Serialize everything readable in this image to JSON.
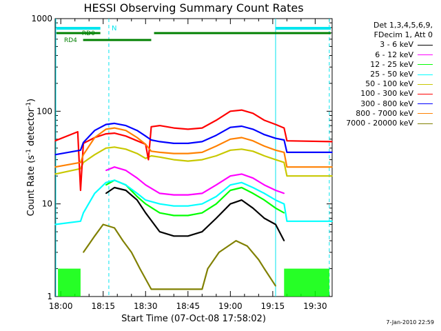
{
  "page": {
    "title": "HESSI Observing Summary Count Rates",
    "timestamp": "7-Jan-2010 22:59"
  },
  "legend": {
    "header": [
      "Det 1,3,4,5,6,9,",
      "FDecim 1, Att 0"
    ]
  },
  "chart_data": {
    "type": "line",
    "title": "HESSI Observing Summary Count Rates",
    "xlabel": "Start Time (07-Oct-08 17:58:02)",
    "ylabel_prefix": "Count Rate (s",
    "ylabel_mid": " detector",
    "ylabel_suffix": ")",
    "ylabel_exp": "-1",
    "ylim": [
      1,
      1000
    ],
    "yscale": "log",
    "xlim": [
      "17:58",
      "19:36"
    ],
    "xticks": [
      "18:00",
      "18:15",
      "18:30",
      "18:45",
      "19:00",
      "19:15",
      "19:30"
    ],
    "yticks": [
      "1",
      "10",
      "100",
      "1000"
    ],
    "series": [
      {
        "name": "3 - 6 keV",
        "color": "#000000",
        "x": [
          "18:16",
          "18:19",
          "18:23",
          "18:27",
          "18:30",
          "18:35",
          "18:40",
          "18:45",
          "18:50",
          "18:55",
          "19:00",
          "19:04",
          "19:08",
          "19:12",
          "19:16",
          "19:19"
        ],
        "values": [
          13,
          15,
          14,
          11,
          8,
          5,
          4.5,
          4.5,
          5,
          7,
          10,
          11,
          9,
          7,
          6,
          4
        ]
      },
      {
        "name": "6 - 12 keV",
        "color": "#ff00ff",
        "x": [
          "18:16",
          "18:19",
          "18:23",
          "18:27",
          "18:30",
          "18:35",
          "18:40",
          "18:45",
          "18:50",
          "18:55",
          "19:00",
          "19:04",
          "19:08",
          "19:12",
          "19:16",
          "19:19"
        ],
        "values": [
          23,
          25,
          23,
          19,
          16,
          13,
          12.5,
          12.5,
          13,
          16,
          20,
          21,
          19,
          16,
          14,
          13
        ]
      },
      {
        "name": "12 - 25 keV",
        "color": "#00ff00",
        "x": [
          "18:16",
          "18:19",
          "18:23",
          "18:27",
          "18:30",
          "18:35",
          "18:40",
          "18:45",
          "18:50",
          "18:55",
          "19:00",
          "19:04",
          "19:08",
          "19:12",
          "19:16",
          "19:19"
        ],
        "values": [
          16,
          18,
          16,
          12,
          10,
          8,
          7.5,
          7.5,
          8,
          10,
          14,
          15,
          13,
          11,
          9,
          8
        ]
      },
      {
        "name": "25 - 50 keV",
        "color": "#00ffff",
        "x": [
          "17:58",
          "18:07",
          "18:08",
          "18:12",
          "18:16",
          "18:19",
          "18:23",
          "18:27",
          "18:30",
          "18:35",
          "18:40",
          "18:45",
          "18:50",
          "18:55",
          "19:00",
          "19:04",
          "19:08",
          "19:12",
          "19:16",
          "19:19",
          "19:20",
          "19:36"
        ],
        "values": [
          6,
          6.5,
          8,
          13,
          17,
          18,
          16,
          13,
          11,
          10,
          9.5,
          9.5,
          10,
          12,
          16,
          17,
          15,
          13,
          11,
          10,
          6.5,
          6.5
        ]
      },
      {
        "name": "50 - 100 keV",
        "color": "#c8c800",
        "x": [
          "17:58",
          "18:07",
          "18:08",
          "18:12",
          "18:16",
          "18:19",
          "18:23",
          "18:27",
          "18:30",
          "18:32",
          "18:35",
          "18:40",
          "18:45",
          "18:50",
          "18:55",
          "19:00",
          "19:04",
          "19:08",
          "19:12",
          "19:16",
          "19:19",
          "19:20",
          "19:36"
        ],
        "values": [
          21,
          24,
          28,
          34,
          40,
          41,
          39,
          35,
          31,
          33,
          32,
          30,
          29,
          30,
          33,
          38,
          39,
          37,
          33,
          30,
          28,
          20,
          20
        ]
      },
      {
        "name": "100 - 300 keV",
        "color": "#ff0000",
        "x": [
          "17:58",
          "18:06",
          "18:07",
          "18:08",
          "18:12",
          "18:16",
          "18:19",
          "18:23",
          "18:27",
          "18:30",
          "18:31",
          "18:32",
          "18:35",
          "18:40",
          "18:45",
          "18:50",
          "18:55",
          "19:00",
          "19:04",
          "19:08",
          "19:12",
          "19:16",
          "19:19",
          "19:20",
          "19:36"
        ],
        "values": [
          48,
          60,
          14,
          45,
          52,
          57,
          58,
          54,
          48,
          44,
          30,
          68,
          70,
          66,
          64,
          66,
          80,
          100,
          103,
          95,
          80,
          72,
          66,
          48,
          47
        ]
      },
      {
        "name": "300 - 800 keV",
        "color": "#0000ff",
        "x": [
          "17:58",
          "18:07",
          "18:08",
          "18:12",
          "18:16",
          "18:19",
          "18:23",
          "18:27",
          "18:30",
          "18:32",
          "18:35",
          "18:40",
          "18:45",
          "18:50",
          "18:55",
          "19:00",
          "19:04",
          "19:08",
          "19:12",
          "19:16",
          "19:19",
          "19:20",
          "19:36"
        ],
        "values": [
          34,
          38,
          46,
          62,
          72,
          74,
          70,
          62,
          54,
          49,
          47,
          45,
          45,
          47,
          55,
          67,
          69,
          64,
          56,
          51,
          49,
          36,
          36
        ]
      },
      {
        "name": "800 - 7000 keV",
        "color": "#ff8000",
        "x": [
          "17:58",
          "18:07",
          "18:08",
          "18:12",
          "18:16",
          "18:19",
          "18:23",
          "18:27",
          "18:30",
          "18:32",
          "18:35",
          "18:40",
          "18:45",
          "18:50",
          "18:55",
          "19:00",
          "19:04",
          "19:08",
          "19:12",
          "19:16",
          "19:19",
          "19:20",
          "19:36"
        ],
        "values": [
          25,
          28,
          34,
          52,
          64,
          66,
          62,
          52,
          44,
          37,
          36,
          35,
          35,
          36,
          42,
          50,
          52,
          48,
          42,
          38,
          36,
          25,
          25
        ]
      },
      {
        "name": "7000 - 20000 keV",
        "color": "#808000",
        "x": [
          "18:08",
          "18:12",
          "18:15",
          "18:19",
          "18:22",
          "18:25",
          "18:28",
          "18:32",
          "18:50",
          "18:52",
          "18:56",
          "19:02",
          "19:06",
          "19:10",
          "19:12",
          "19:16"
        ],
        "values": [
          3,
          4.5,
          6,
          5.5,
          4,
          3,
          2,
          1.2,
          1.2,
          2,
          3,
          4,
          3.5,
          2.5,
          2,
          1.3
        ]
      }
    ],
    "annotations": {
      "N": "N",
      "RD0": "RD0",
      "RD4": "RD4"
    }
  }
}
